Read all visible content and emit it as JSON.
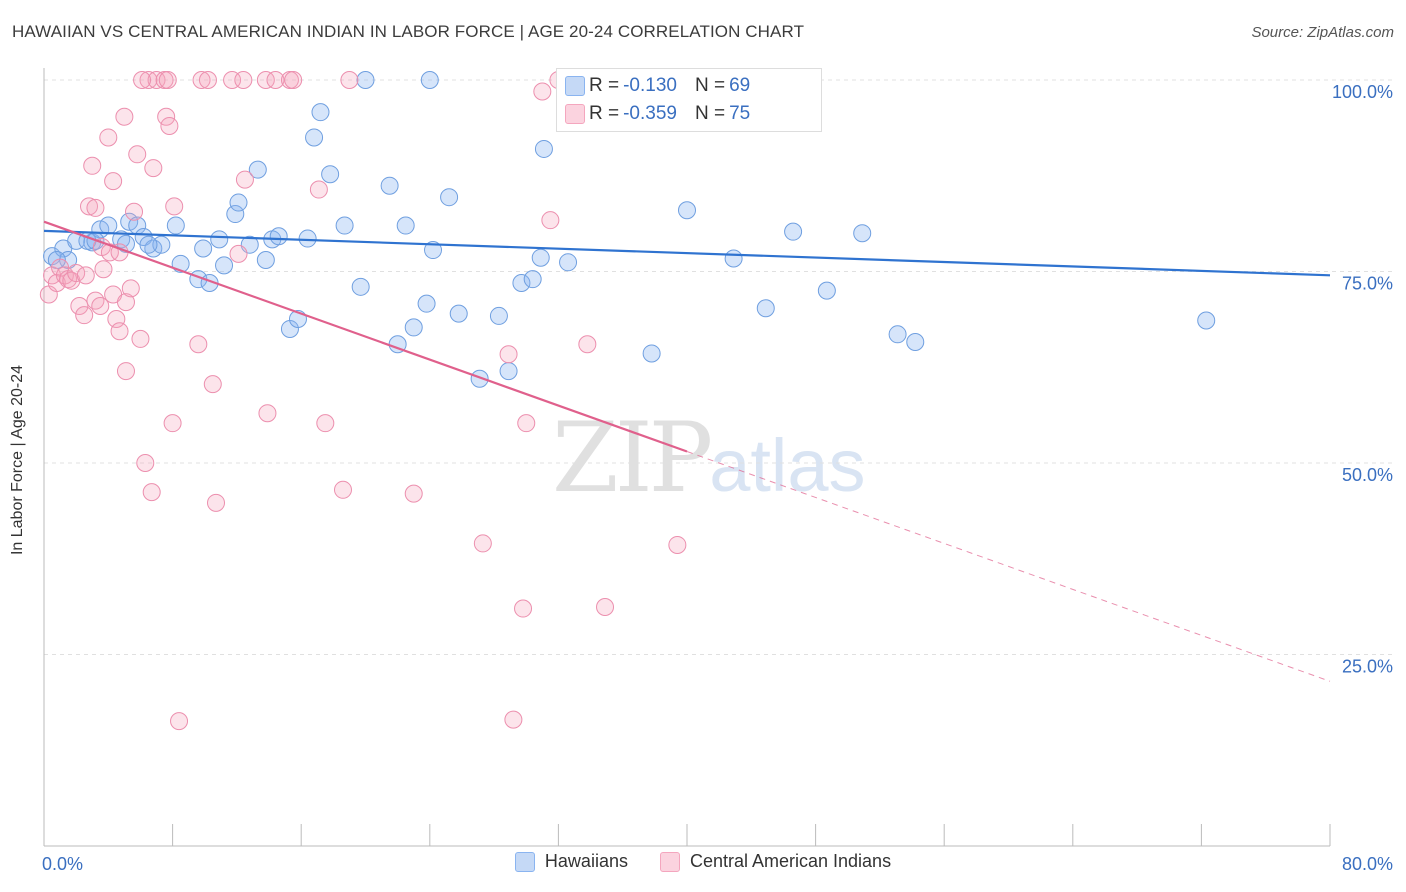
{
  "title": "HAWAIIAN VS CENTRAL AMERICAN INDIAN IN LABOR FORCE | AGE 20-24 CORRELATION CHART",
  "source": "Source: ZipAtlas.com",
  "watermark": {
    "zip": "ZIP",
    "atlas": "atlas"
  },
  "colors": {
    "blue": "#8ab4f0",
    "blue_line": "#2f73d0",
    "pink": "#f4a6be",
    "pink_line": "#e0608c",
    "tick_label": "#3a6fc0",
    "grid": "#e0e0e0"
  },
  "stats": {
    "rows": [
      {
        "r_label": "R = ",
        "r_value": "-0.130",
        "n_label": "N = ",
        "n_value": "69"
      },
      {
        "r_label": "R = ",
        "r_value": "-0.359",
        "n_label": "N = ",
        "n_value": "75"
      }
    ]
  },
  "chart_data": {
    "type": "scatter",
    "title": "HAWAIIAN VS CENTRAL AMERICAN INDIAN IN LABOR FORCE | AGE 20-24 CORRELATION CHART",
    "xlabel": "",
    "ylabel": "In Labor Force | Age 20-24",
    "xlim": [
      0,
      80
    ],
    "ylim": [
      0,
      105
    ],
    "x_tick_labels": [
      "0.0%",
      "80.0%"
    ],
    "y_ticks": [
      25,
      50,
      75,
      100
    ],
    "y_tick_labels": [
      "25.0%",
      "50.0%",
      "75.0%",
      "100.0%"
    ],
    "grid": true,
    "legend": [
      "Hawaiians",
      "Central American Indians"
    ],
    "series": [
      {
        "name": "Hawaiians",
        "trend": {
          "x0": 0,
          "y0": 80.3,
          "x1": 80,
          "y1": 74.5
        },
        "points": [
          [
            0.5,
            77
          ],
          [
            1.2,
            78
          ],
          [
            1.5,
            76.5
          ],
          [
            2.0,
            79
          ],
          [
            3.0,
            78.8
          ],
          [
            3.5,
            80.5
          ],
          [
            4.0,
            81
          ],
          [
            4.8,
            79.2
          ],
          [
            5.3,
            81.5
          ],
          [
            5.8,
            81
          ],
          [
            6.2,
            79.5
          ],
          [
            6.8,
            78
          ],
          [
            7.3,
            78.5
          ],
          [
            8.2,
            81
          ],
          [
            8.5,
            76
          ],
          [
            9.6,
            74
          ],
          [
            9.9,
            78
          ],
          [
            10.3,
            73.5
          ],
          [
            10.9,
            79.2
          ],
          [
            11.2,
            75.8
          ],
          [
            11.9,
            82.5
          ],
          [
            12.1,
            84
          ],
          [
            12.8,
            78.5
          ],
          [
            13.3,
            88.3
          ],
          [
            13.8,
            76.5
          ],
          [
            14.2,
            79.2
          ],
          [
            14.6,
            79.6
          ],
          [
            15.3,
            67.5
          ],
          [
            15.8,
            68.8
          ],
          [
            16.4,
            79.3
          ],
          [
            16.8,
            92.5
          ],
          [
            17.2,
            95.8
          ],
          [
            17.8,
            87.7
          ],
          [
            18.7,
            81
          ],
          [
            19.7,
            73
          ],
          [
            20,
            100
          ],
          [
            21.5,
            86.2
          ],
          [
            22,
            65.5
          ],
          [
            22.5,
            81
          ],
          [
            23,
            67.7
          ],
          [
            23.8,
            70.8
          ],
          [
            24.2,
            77.8
          ],
          [
            25.2,
            84.7
          ],
          [
            25.8,
            69.5
          ],
          [
            27.1,
            61
          ],
          [
            28.3,
            69.2
          ],
          [
            28.9,
            62
          ],
          [
            29.7,
            73.5
          ],
          [
            30.4,
            74
          ],
          [
            30.9,
            76.8
          ],
          [
            31.1,
            91
          ],
          [
            32.6,
            76.2
          ],
          [
            37.8,
            64.3
          ],
          [
            40,
            83
          ],
          [
            42.9,
            76.7
          ],
          [
            44.9,
            70.2
          ],
          [
            45.2,
            100
          ],
          [
            46.6,
            80.2
          ],
          [
            48.7,
            72.5
          ],
          [
            50.9,
            80
          ],
          [
            53.1,
            66.8
          ],
          [
            54.2,
            65.8
          ],
          [
            72.3,
            68.6
          ],
          [
            24,
            100
          ],
          [
            0.8,
            76.5
          ],
          [
            2.7,
            79
          ],
          [
            6.5,
            78.5
          ],
          [
            5.1,
            78.6
          ],
          [
            3.2,
            79
          ]
        ]
      },
      {
        "name": "Central American Indians",
        "trend": {
          "x0": 0,
          "y0": 81.5,
          "x1": 40,
          "y1": 51.5,
          "dash_x1": 80,
          "dash_y1": 21.5
        },
        "points": [
          [
            0.3,
            72
          ],
          [
            0.5,
            74.5
          ],
          [
            0.8,
            73.5
          ],
          [
            1,
            75.5
          ],
          [
            1.3,
            74.5
          ],
          [
            1.5,
            74
          ],
          [
            1.7,
            73.8
          ],
          [
            2.0,
            74.8
          ],
          [
            2.2,
            70.5
          ],
          [
            2.5,
            69.3
          ],
          [
            2.8,
            83.5
          ],
          [
            2.6,
            74.5
          ],
          [
            3.2,
            71.2
          ],
          [
            3.2,
            83.3
          ],
          [
            3.0,
            88.8
          ],
          [
            3.5,
            70.5
          ],
          [
            3.6,
            78.2
          ],
          [
            3.7,
            75.3
          ],
          [
            4.1,
            77.5
          ],
          [
            4.0,
            92.5
          ],
          [
            4.3,
            86.8
          ],
          [
            4.3,
            72
          ],
          [
            4.5,
            68.8
          ],
          [
            4.7,
            77.5
          ],
          [
            4.7,
            67.2
          ],
          [
            5.0,
            95.2
          ],
          [
            5.1,
            62
          ],
          [
            5.1,
            71
          ],
          [
            5.4,
            72.8
          ],
          [
            5.6,
            82.8
          ],
          [
            5.8,
            90.3
          ],
          [
            6.0,
            66.2
          ],
          [
            6.3,
            50
          ],
          [
            6.5,
            100
          ],
          [
            6.7,
            46.2
          ],
          [
            6.8,
            88.5
          ],
          [
            7.0,
            100
          ],
          [
            7.5,
            100
          ],
          [
            7.6,
            95.2
          ],
          [
            7.7,
            100
          ],
          [
            7.8,
            94
          ],
          [
            8.0,
            55.2
          ],
          [
            8.1,
            83.5
          ],
          [
            8.4,
            16.3
          ],
          [
            9.6,
            65.5
          ],
          [
            9.8,
            100
          ],
          [
            10.2,
            100
          ],
          [
            10.5,
            60.3
          ],
          [
            10.7,
            44.8
          ],
          [
            11.7,
            100
          ],
          [
            12.1,
            77.3
          ],
          [
            12.4,
            100
          ],
          [
            12.5,
            87
          ],
          [
            13.8,
            100
          ],
          [
            13.9,
            56.5
          ],
          [
            14.4,
            100
          ],
          [
            15.3,
            100
          ],
          [
            15.5,
            100
          ],
          [
            17.1,
            85.7
          ],
          [
            17.5,
            55.2
          ],
          [
            18.6,
            46.5
          ],
          [
            19.0,
            100
          ],
          [
            23.0,
            46
          ],
          [
            27.3,
            39.5
          ],
          [
            28.9,
            64.2
          ],
          [
            29.2,
            16.5
          ],
          [
            29.8,
            31
          ],
          [
            30.0,
            55.2
          ],
          [
            31.0,
            98.5
          ],
          [
            31.5,
            81.7
          ],
          [
            32.0,
            100
          ],
          [
            33.8,
            65.5
          ],
          [
            34.9,
            31.2
          ],
          [
            39.4,
            39.3
          ],
          [
            6.1,
            100
          ]
        ]
      }
    ]
  },
  "legend": {
    "item1": "Hawaiians",
    "item2": "Central American Indians"
  }
}
